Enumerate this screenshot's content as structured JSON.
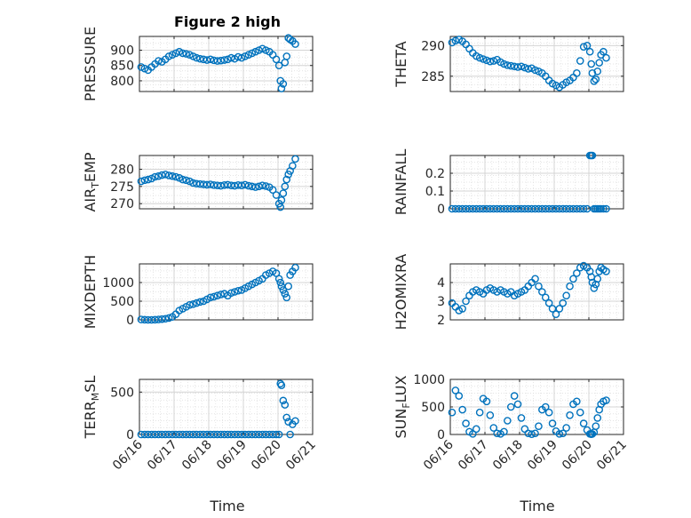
{
  "title": "Figure 2 high",
  "marker_color": "#0072BD",
  "chart_data": [
    {
      "type": "scatter",
      "ylabel": "PRESSURE",
      "xlim": [
        0,
        5
      ],
      "ylim": [
        765,
        945
      ],
      "yticks": [
        800,
        850,
        900
      ],
      "x": [
        0.05,
        0.15,
        0.25,
        0.35,
        0.45,
        0.55,
        0.65,
        0.75,
        0.85,
        0.95,
        1.05,
        1.15,
        1.25,
        1.35,
        1.45,
        1.55,
        1.65,
        1.75,
        1.85,
        1.95,
        2.05,
        2.15,
        2.25,
        2.35,
        2.45,
        2.55,
        2.65,
        2.75,
        2.85,
        2.95,
        3.05,
        3.15,
        3.25,
        3.35,
        3.45,
        3.55,
        3.65,
        3.75,
        3.85,
        3.95,
        4.03,
        4.07,
        4.1,
        4.15,
        4.2,
        4.25,
        4.3,
        4.35,
        4.42,
        4.5
      ],
      "y": [
        845,
        840,
        835,
        845,
        855,
        865,
        862,
        870,
        880,
        885,
        890,
        895,
        890,
        888,
        885,
        880,
        875,
        872,
        870,
        868,
        870,
        867,
        865,
        866,
        868,
        870,
        875,
        872,
        878,
        875,
        880,
        885,
        890,
        895,
        900,
        905,
        900,
        895,
        885,
        870,
        850,
        800,
        775,
        790,
        860,
        880,
        940,
        935,
        930,
        920
      ]
    },
    {
      "type": "scatter",
      "ylabel": "THETA",
      "xlim": [
        0,
        5
      ],
      "ylim": [
        282.5,
        291.5
      ],
      "yticks": [
        285,
        290
      ],
      "x": [
        0.05,
        0.15,
        0.25,
        0.35,
        0.45,
        0.55,
        0.65,
        0.75,
        0.85,
        0.95,
        1.05,
        1.15,
        1.25,
        1.35,
        1.45,
        1.55,
        1.65,
        1.75,
        1.85,
        1.95,
        2.05,
        2.15,
        2.25,
        2.35,
        2.45,
        2.55,
        2.65,
        2.75,
        2.85,
        2.95,
        3.05,
        3.15,
        3.25,
        3.35,
        3.45,
        3.55,
        3.65,
        3.75,
        3.85,
        3.95,
        4.03,
        4.07,
        4.1,
        4.15,
        4.2,
        4.25,
        4.3,
        4.35,
        4.42,
        4.5
      ],
      "y": [
        290.5,
        290.8,
        291.0,
        290.7,
        290.2,
        289.5,
        288.8,
        288.3,
        288.0,
        287.8,
        287.6,
        287.4,
        287.5,
        287.7,
        287.3,
        287.0,
        286.8,
        286.7,
        286.6,
        286.5,
        286.6,
        286.4,
        286.2,
        286.3,
        286.0,
        285.8,
        285.5,
        285.0,
        284.3,
        283.8,
        283.5,
        283.2,
        283.6,
        284.0,
        284.3,
        284.8,
        285.5,
        287.5,
        289.8,
        290.0,
        289.0,
        287.0,
        285.5,
        284.2,
        284.5,
        285.8,
        287.2,
        288.5,
        289.0,
        288.0
      ]
    },
    {
      "type": "scatter",
      "ylabel": "AIR_TEMP",
      "xlim": [
        0,
        5
      ],
      "ylim": [
        268.5,
        284
      ],
      "yticks": [
        270,
        275,
        280
      ],
      "x": [
        0.05,
        0.15,
        0.25,
        0.35,
        0.45,
        0.55,
        0.65,
        0.75,
        0.85,
        0.95,
        1.05,
        1.15,
        1.25,
        1.35,
        1.45,
        1.55,
        1.65,
        1.75,
        1.85,
        1.95,
        2.05,
        2.15,
        2.25,
        2.35,
        2.45,
        2.55,
        2.65,
        2.75,
        2.85,
        2.95,
        3.05,
        3.15,
        3.25,
        3.35,
        3.45,
        3.55,
        3.65,
        3.75,
        3.85,
        3.95,
        4.03,
        4.07,
        4.1,
        4.15,
        4.2,
        4.25,
        4.3,
        4.35,
        4.42,
        4.5
      ],
      "y": [
        276.5,
        276.8,
        277.0,
        277.3,
        277.8,
        278.0,
        278.3,
        278.5,
        278.2,
        278.0,
        277.8,
        277.5,
        277.0,
        276.8,
        276.5,
        276.0,
        275.8,
        275.7,
        275.6,
        275.5,
        275.6,
        275.4,
        275.3,
        275.2,
        275.4,
        275.5,
        275.3,
        275.2,
        275.4,
        275.3,
        275.5,
        275.2,
        275.0,
        274.8,
        275.0,
        275.3,
        275.1,
        274.8,
        274.0,
        272.5,
        270.0,
        269.0,
        271.0,
        273.0,
        275.0,
        277.0,
        278.5,
        279.5,
        281.0,
        283.0
      ]
    },
    {
      "type": "scatter",
      "ylabel": "RAINFALL",
      "xlim": [
        0,
        5
      ],
      "ylim": [
        0,
        0.3
      ],
      "yticks": [
        0,
        0.1,
        0.2
      ],
      "x": [
        0.05,
        0.15,
        0.25,
        0.35,
        0.45,
        0.55,
        0.65,
        0.75,
        0.85,
        0.95,
        1.05,
        1.15,
        1.25,
        1.35,
        1.45,
        1.55,
        1.65,
        1.75,
        1.85,
        1.95,
        2.05,
        2.15,
        2.25,
        2.35,
        2.45,
        2.55,
        2.65,
        2.75,
        2.85,
        2.95,
        3.05,
        3.15,
        3.25,
        3.35,
        3.45,
        3.55,
        3.65,
        3.75,
        3.85,
        3.95,
        4.03,
        4.07,
        4.1,
        4.15,
        4.2,
        4.25,
        4.3,
        4.35,
        4.42,
        4.5
      ],
      "y": [
        0,
        0,
        0,
        0,
        0,
        0,
        0,
        0,
        0,
        0,
        0,
        0,
        0,
        0,
        0,
        0,
        0,
        0,
        0,
        0,
        0,
        0,
        0,
        0,
        0,
        0,
        0,
        0,
        0,
        0,
        0,
        0,
        0,
        0,
        0,
        0,
        0,
        0,
        0,
        0,
        0.3,
        0.3,
        0.3,
        0,
        0,
        0,
        0,
        0,
        0,
        0
      ]
    },
    {
      "type": "scatter",
      "ylabel": "MIXDEPTH",
      "xlim": [
        0,
        5
      ],
      "ylim": [
        0,
        1500
      ],
      "yticks": [
        0,
        500,
        1000
      ],
      "x": [
        0.05,
        0.15,
        0.25,
        0.35,
        0.45,
        0.55,
        0.65,
        0.75,
        0.85,
        0.95,
        1.05,
        1.15,
        1.25,
        1.35,
        1.45,
        1.55,
        1.65,
        1.75,
        1.85,
        1.95,
        2.05,
        2.15,
        2.25,
        2.35,
        2.45,
        2.55,
        2.65,
        2.75,
        2.85,
        2.95,
        3.05,
        3.15,
        3.25,
        3.35,
        3.45,
        3.55,
        3.65,
        3.75,
        3.85,
        3.95,
        4.03,
        4.07,
        4.1,
        4.15,
        4.2,
        4.25,
        4.3,
        4.35,
        4.42,
        4.5
      ],
      "y": [
        10,
        5,
        0,
        0,
        5,
        10,
        20,
        30,
        50,
        80,
        150,
        250,
        300,
        350,
        400,
        420,
        450,
        480,
        500,
        550,
        600,
        620,
        650,
        680,
        700,
        650,
        720,
        750,
        780,
        800,
        850,
        900,
        950,
        1000,
        1050,
        1100,
        1200,
        1250,
        1300,
        1250,
        1100,
        1000,
        900,
        800,
        700,
        600,
        900,
        1200,
        1300,
        1400
      ]
    },
    {
      "type": "scatter",
      "ylabel": "H2OMIXRA",
      "xlim": [
        0,
        5
      ],
      "ylim": [
        2,
        5
      ],
      "yticks": [
        2,
        3,
        4
      ],
      "x": [
        0.05,
        0.15,
        0.25,
        0.35,
        0.45,
        0.55,
        0.65,
        0.75,
        0.85,
        0.95,
        1.05,
        1.15,
        1.25,
        1.35,
        1.45,
        1.55,
        1.65,
        1.75,
        1.85,
        1.95,
        2.05,
        2.15,
        2.25,
        2.35,
        2.45,
        2.55,
        2.65,
        2.75,
        2.85,
        2.95,
        3.05,
        3.15,
        3.25,
        3.35,
        3.45,
        3.55,
        3.65,
        3.75,
        3.85,
        3.95,
        4.03,
        4.07,
        4.1,
        4.15,
        4.2,
        4.25,
        4.3,
        4.35,
        4.42,
        4.5
      ],
      "y": [
        2.9,
        2.7,
        2.5,
        2.6,
        3.0,
        3.3,
        3.5,
        3.6,
        3.5,
        3.4,
        3.6,
        3.7,
        3.6,
        3.5,
        3.6,
        3.5,
        3.4,
        3.5,
        3.3,
        3.4,
        3.5,
        3.6,
        3.8,
        4.0,
        4.2,
        3.8,
        3.5,
        3.2,
        2.9,
        2.6,
        2.3,
        2.6,
        2.9,
        3.3,
        3.8,
        4.2,
        4.5,
        4.8,
        4.9,
        4.8,
        4.6,
        4.3,
        4.0,
        3.7,
        3.9,
        4.2,
        4.6,
        4.8,
        4.7,
        4.6
      ]
    },
    {
      "type": "scatter",
      "ylabel": "TERR_MSL",
      "xlim": [
        0,
        5
      ],
      "ylim": [
        0,
        650
      ],
      "yticks": [
        0,
        500
      ],
      "x": [
        0.05,
        0.15,
        0.25,
        0.35,
        0.45,
        0.55,
        0.65,
        0.75,
        0.85,
        0.95,
        1.05,
        1.15,
        1.25,
        1.35,
        1.45,
        1.55,
        1.65,
        1.75,
        1.85,
        1.95,
        2.05,
        2.15,
        2.25,
        2.35,
        2.45,
        2.55,
        2.65,
        2.75,
        2.85,
        2.95,
        3.05,
        3.15,
        3.25,
        3.35,
        3.45,
        3.55,
        3.65,
        3.75,
        3.85,
        3.95,
        4.03,
        4.07,
        4.1,
        4.15,
        4.2,
        4.25,
        4.3,
        4.35,
        4.42,
        4.5
      ],
      "y": [
        0,
        0,
        0,
        0,
        0,
        0,
        0,
        0,
        0,
        0,
        0,
        0,
        0,
        0,
        0,
        0,
        0,
        0,
        0,
        0,
        0,
        0,
        0,
        0,
        0,
        0,
        0,
        0,
        0,
        0,
        0,
        0,
        0,
        0,
        0,
        0,
        0,
        0,
        0,
        0,
        0,
        600,
        580,
        400,
        350,
        200,
        150,
        0,
        120,
        160
      ]
    },
    {
      "type": "scatter",
      "ylabel": "SUN_FLUX",
      "xlim": [
        0,
        5
      ],
      "ylim": [
        0,
        1000
      ],
      "yticks": [
        0,
        500,
        1000
      ],
      "x": [
        0.05,
        0.15,
        0.25,
        0.35,
        0.45,
        0.55,
        0.65,
        0.75,
        0.85,
        0.95,
        1.05,
        1.15,
        1.25,
        1.35,
        1.45,
        1.55,
        1.65,
        1.75,
        1.85,
        1.95,
        2.05,
        2.15,
        2.25,
        2.35,
        2.45,
        2.55,
        2.65,
        2.75,
        2.85,
        2.95,
        3.05,
        3.15,
        3.25,
        3.35,
        3.45,
        3.55,
        3.65,
        3.75,
        3.85,
        3.95,
        4.03,
        4.07,
        4.1,
        4.15,
        4.2,
        4.25,
        4.3,
        4.35,
        4.42,
        4.5
      ],
      "y": [
        400,
        800,
        700,
        450,
        200,
        50,
        10,
        100,
        400,
        650,
        600,
        350,
        120,
        20,
        10,
        50,
        250,
        500,
        700,
        550,
        300,
        100,
        20,
        5,
        20,
        150,
        450,
        500,
        400,
        200,
        60,
        10,
        20,
        120,
        350,
        550,
        600,
        400,
        200,
        80,
        10,
        5,
        10,
        40,
        150,
        300,
        450,
        550,
        600,
        620
      ]
    }
  ],
  "xaxis": {
    "ticklabels": [
      "06/16",
      "06/17",
      "06/18",
      "06/19",
      "06/20",
      "06/21"
    ],
    "label": "Time"
  }
}
